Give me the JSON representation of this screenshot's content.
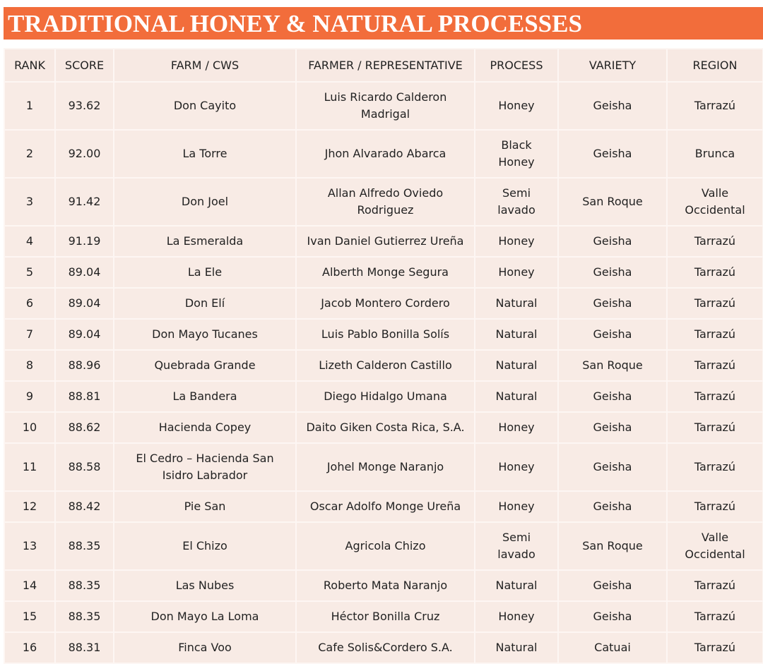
{
  "header": {
    "title": "TRADITIONAL HONEY & NATURAL PROCESSES"
  },
  "table": {
    "columns": [
      "RANK",
      "SCORE",
      "FARM / CWS",
      "FARMER / REPRESENTATIVE",
      "PROCESS",
      "VARIETY",
      "REGION"
    ],
    "rows": [
      [
        "1",
        "93.62",
        "Don Cayito",
        [
          "Luis Ricardo Calderon",
          "Madrigal"
        ],
        "Honey",
        "Geisha",
        "Tarrazú"
      ],
      [
        "2",
        "92.00",
        "La Torre",
        "Jhon Alvarado Abarca",
        [
          "Black",
          "Honey"
        ],
        "Geisha",
        "Brunca"
      ],
      [
        "3",
        "91.42",
        "Don Joel",
        [
          "Allan Alfredo Oviedo",
          "Rodriguez"
        ],
        [
          "Semi",
          "lavado"
        ],
        "San Roque",
        [
          "Valle",
          "Occidental"
        ]
      ],
      [
        "4",
        "91.19",
        "La Esmeralda",
        "Ivan Daniel Gutierrez Ureña",
        "Honey",
        "Geisha",
        "Tarrazú"
      ],
      [
        "5",
        "89.04",
        "La Ele",
        "Alberth Monge Segura",
        "Honey",
        "Geisha",
        "Tarrazú"
      ],
      [
        "6",
        "89.04",
        "Don Elí",
        "Jacob Montero Cordero",
        "Natural",
        "Geisha",
        "Tarrazú"
      ],
      [
        "7",
        "89.04",
        "Don Mayo Tucanes",
        "Luis Pablo Bonilla Solís",
        "Natural",
        "Geisha",
        "Tarrazú"
      ],
      [
        "8",
        "88.96",
        "Quebrada Grande",
        "Lizeth Calderon Castillo",
        "Natural",
        "San Roque",
        "Tarrazú"
      ],
      [
        "9",
        "88.81",
        "La Bandera",
        "Diego Hidalgo Umana",
        "Natural",
        "Geisha",
        "Tarrazú"
      ],
      [
        "10",
        "88.62",
        "Hacienda Copey",
        "Daito Giken Costa Rica, S.A.",
        "Honey",
        "Geisha",
        "Tarrazú"
      ],
      [
        "11",
        "88.58",
        [
          "El Cedro – Hacienda San",
          "Isidro Labrador"
        ],
        "Johel Monge Naranjo",
        "Honey",
        "Geisha",
        "Tarrazú"
      ],
      [
        "12",
        "88.42",
        "Pie San",
        "Oscar Adolfo Monge Ureña",
        "Honey",
        "Geisha",
        "Tarrazú"
      ],
      [
        "13",
        "88.35",
        "El Chizo",
        "Agricola Chizo",
        [
          "Semi",
          "lavado"
        ],
        "San Roque",
        [
          "Valle",
          "Occidental"
        ]
      ],
      [
        "14",
        "88.35",
        "Las Nubes",
        "Roberto Mata Naranjo",
        "Natural",
        "Geisha",
        "Tarrazú"
      ],
      [
        "15",
        "88.35",
        "Don Mayo La Loma",
        "Héctor Bonilla Cruz",
        "Honey",
        "Geisha",
        "Tarrazú"
      ],
      [
        "16",
        "88.31",
        "Finca Voo",
        "Cafe Solis&Cordero S.A.",
        "Natural",
        "Catuai",
        "Tarrazú"
      ]
    ]
  }
}
